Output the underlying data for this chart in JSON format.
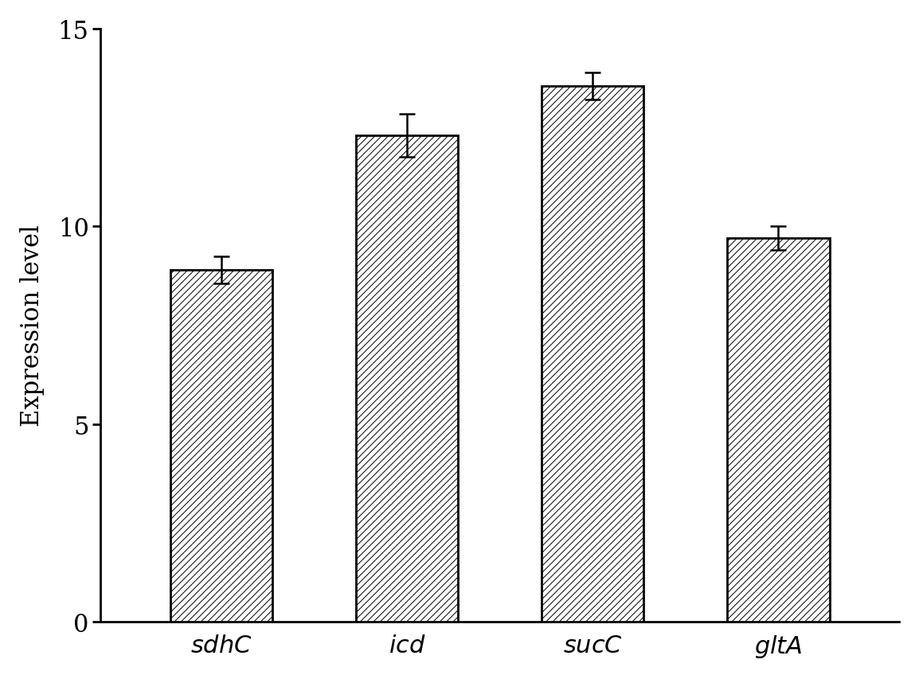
{
  "categories": [
    "sdhC",
    "icd",
    "sucC",
    "gltA"
  ],
  "values": [
    8.9,
    12.3,
    13.55,
    9.7
  ],
  "errors": [
    0.35,
    0.55,
    0.35,
    0.3
  ],
  "ylabel": "Expression level",
  "ylim": [
    0,
    15
  ],
  "yticks": [
    0,
    5,
    10,
    15
  ],
  "bar_color": "#ffffff",
  "bar_edgecolor": "#000000",
  "hatch": "////",
  "figsize": [
    11.54,
    8.54
  ],
  "dpi": 100,
  "bar_width": 0.55,
  "label_fontsize": 22,
  "tick_fontsize": 22,
  "ylabel_fontsize": 22
}
